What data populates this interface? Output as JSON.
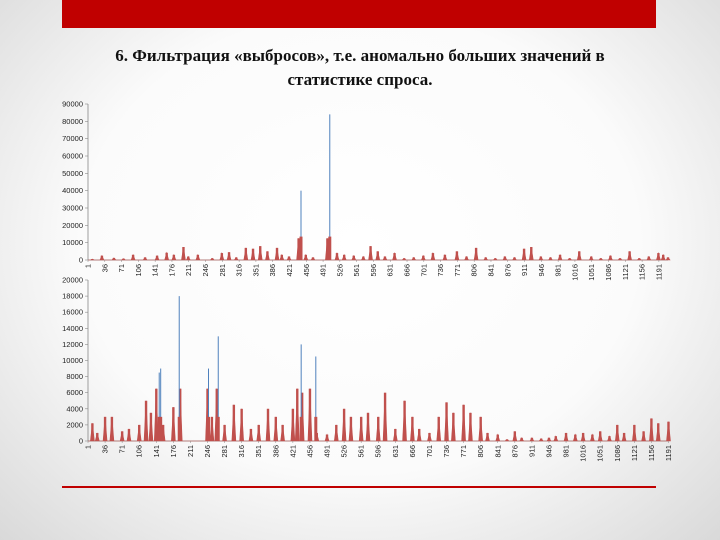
{
  "slide": {
    "title_line1": "6. Фильтрация «выбросов», т.е. аномально больших значений в",
    "title_line2": "статистике спроса.",
    "accent_color": "#c00000"
  },
  "chart_data": [
    {
      "type": "line",
      "title": "",
      "xlabel": "",
      "ylabel": "",
      "ylim": [
        0,
        90000
      ],
      "yticks": [
        0,
        10000,
        20000,
        30000,
        40000,
        50000,
        60000,
        70000,
        80000,
        90000
      ],
      "xlim": [
        1,
        1210
      ],
      "xticks": [
        "1",
        "36",
        "71",
        "106",
        "141",
        "176",
        "211",
        "246",
        "281",
        "316",
        "351",
        "386",
        "421",
        "456",
        "491",
        "526",
        "561",
        "596",
        "631",
        "666",
        "701",
        "736",
        "771",
        "806",
        "841",
        "876",
        "911",
        "946",
        "981",
        "1016",
        "1051",
        "1086",
        "1121",
        "1156",
        "1191",
        "1226"
      ],
      "grid": false,
      "legend": "none",
      "series_colors": [
        "#c0504d",
        "#4f81bd"
      ],
      "baseline_demand": [
        [
          10,
          500
        ],
        [
          30,
          2500
        ],
        [
          55,
          1200
        ],
        [
          75,
          800
        ],
        [
          95,
          3000
        ],
        [
          120,
          1500
        ],
        [
          145,
          2500
        ],
        [
          165,
          4200
        ],
        [
          180,
          3000
        ],
        [
          200,
          7500
        ],
        [
          210,
          2000
        ],
        [
          230,
          3000
        ],
        [
          260,
          1000
        ],
        [
          280,
          4000
        ],
        [
          295,
          4500
        ],
        [
          310,
          1500
        ],
        [
          330,
          7000
        ],
        [
          345,
          6500
        ],
        [
          360,
          8000
        ],
        [
          375,
          5000
        ],
        [
          395,
          7000
        ],
        [
          405,
          3000
        ],
        [
          420,
          2000
        ],
        [
          440,
          12500
        ],
        [
          455,
          3000
        ],
        [
          470,
          1500
        ],
        [
          500,
          12500
        ],
        [
          520,
          4000
        ],
        [
          535,
          3000
        ],
        [
          555,
          2500
        ],
        [
          575,
          2000
        ],
        [
          590,
          8000
        ],
        [
          605,
          5000
        ],
        [
          620,
          2000
        ],
        [
          640,
          4000
        ],
        [
          660,
          1000
        ],
        [
          680,
          1500
        ],
        [
          700,
          2500
        ],
        [
          720,
          4000
        ],
        [
          745,
          3000
        ],
        [
          770,
          5000
        ],
        [
          790,
          2000
        ],
        [
          810,
          7000
        ],
        [
          830,
          1500
        ],
        [
          850,
          1000
        ],
        [
          870,
          2000
        ],
        [
          890,
          1500
        ],
        [
          910,
          6500
        ],
        [
          925,
          7500
        ],
        [
          945,
          2000
        ],
        [
          965,
          1500
        ],
        [
          985,
          3000
        ],
        [
          1005,
          1000
        ],
        [
          1025,
          5000
        ],
        [
          1050,
          2000
        ],
        [
          1070,
          1000
        ],
        [
          1090,
          2500
        ],
        [
          1110,
          1000
        ],
        [
          1130,
          5000
        ],
        [
          1150,
          1000
        ],
        [
          1170,
          2000
        ],
        [
          1190,
          4000
        ],
        [
          1200,
          3000
        ],
        [
          1210,
          1500
        ]
      ],
      "outlier_spikes": [
        [
          445,
          40000
        ],
        [
          505,
          84000
        ]
      ]
    },
    {
      "type": "line",
      "title": "",
      "xlabel": "",
      "ylabel": "",
      "ylim": [
        0,
        20000
      ],
      "yticks": [
        0,
        2000,
        4000,
        6000,
        8000,
        10000,
        12000,
        14000,
        16000,
        18000,
        20000
      ],
      "xlim": [
        1,
        1190
      ],
      "xticks": [
        "1",
        "36",
        "71",
        "106",
        "141",
        "176",
        "211",
        "246",
        "281",
        "316",
        "351",
        "386",
        "421",
        "456",
        "491",
        "526",
        "561",
        "596",
        "631",
        "666",
        "701",
        "736",
        "771",
        "806",
        "841",
        "876",
        "911",
        "946",
        "981",
        "1016",
        "1051",
        "1086",
        "1121",
        "1156",
        "1191"
      ],
      "grid": false,
      "legend": "none",
      "series_colors": [
        "#c0504d",
        "#4f81bd"
      ],
      "baseline_demand": [
        [
          10,
          2200
        ],
        [
          20,
          1000
        ],
        [
          36,
          3000
        ],
        [
          50,
          3000
        ],
        [
          71,
          1200
        ],
        [
          85,
          1500
        ],
        [
          106,
          2000
        ],
        [
          120,
          5000
        ],
        [
          130,
          3500
        ],
        [
          141,
          6500
        ],
        [
          155,
          2000
        ],
        [
          176,
          4200
        ],
        [
          190,
          6500
        ],
        [
          211,
          0
        ],
        [
          230,
          0
        ],
        [
          246,
          6500
        ],
        [
          255,
          3000
        ],
        [
          265,
          6500
        ],
        [
          281,
          2000
        ],
        [
          300,
          4500
        ],
        [
          316,
          4000
        ],
        [
          335,
          1500
        ],
        [
          351,
          2000
        ],
        [
          370,
          4000
        ],
        [
          386,
          3000
        ],
        [
          400,
          2000
        ],
        [
          421,
          4000
        ],
        [
          430,
          6500
        ],
        [
          440,
          6000
        ],
        [
          456,
          6500
        ],
        [
          470,
          1000
        ],
        [
          491,
          800
        ],
        [
          510,
          2000
        ],
        [
          526,
          4000
        ],
        [
          540,
          3000
        ],
        [
          561,
          3000
        ],
        [
          575,
          3500
        ],
        [
          596,
          3000
        ],
        [
          610,
          6000
        ],
        [
          631,
          1500
        ],
        [
          650,
          5000
        ],
        [
          666,
          3000
        ],
        [
          680,
          1500
        ],
        [
          701,
          1000
        ],
        [
          720,
          3000
        ],
        [
          736,
          4800
        ],
        [
          750,
          3500
        ],
        [
          771,
          4500
        ],
        [
          785,
          3500
        ],
        [
          806,
          3000
        ],
        [
          820,
          1000
        ],
        [
          841,
          800
        ],
        [
          860,
          200
        ],
        [
          876,
          1200
        ],
        [
          890,
          400
        ],
        [
          911,
          400
        ],
        [
          930,
          300
        ],
        [
          946,
          400
        ],
        [
          960,
          600
        ],
        [
          981,
          1000
        ],
        [
          1000,
          800
        ],
        [
          1016,
          1000
        ],
        [
          1035,
          800
        ],
        [
          1051,
          1200
        ],
        [
          1070,
          600
        ],
        [
          1086,
          2000
        ],
        [
          1100,
          1000
        ],
        [
          1121,
          2000
        ],
        [
          1140,
          1200
        ],
        [
          1156,
          2800
        ],
        [
          1170,
          2200
        ],
        [
          1191,
          2400
        ]
      ],
      "outlier_spikes": [
        [
          147,
          8500
        ],
        [
          150,
          9000
        ],
        [
          188,
          18000
        ],
        [
          248,
          9000
        ],
        [
          268,
          13000
        ],
        [
          438,
          12000
        ],
        [
          468,
          10500
        ]
      ]
    }
  ]
}
